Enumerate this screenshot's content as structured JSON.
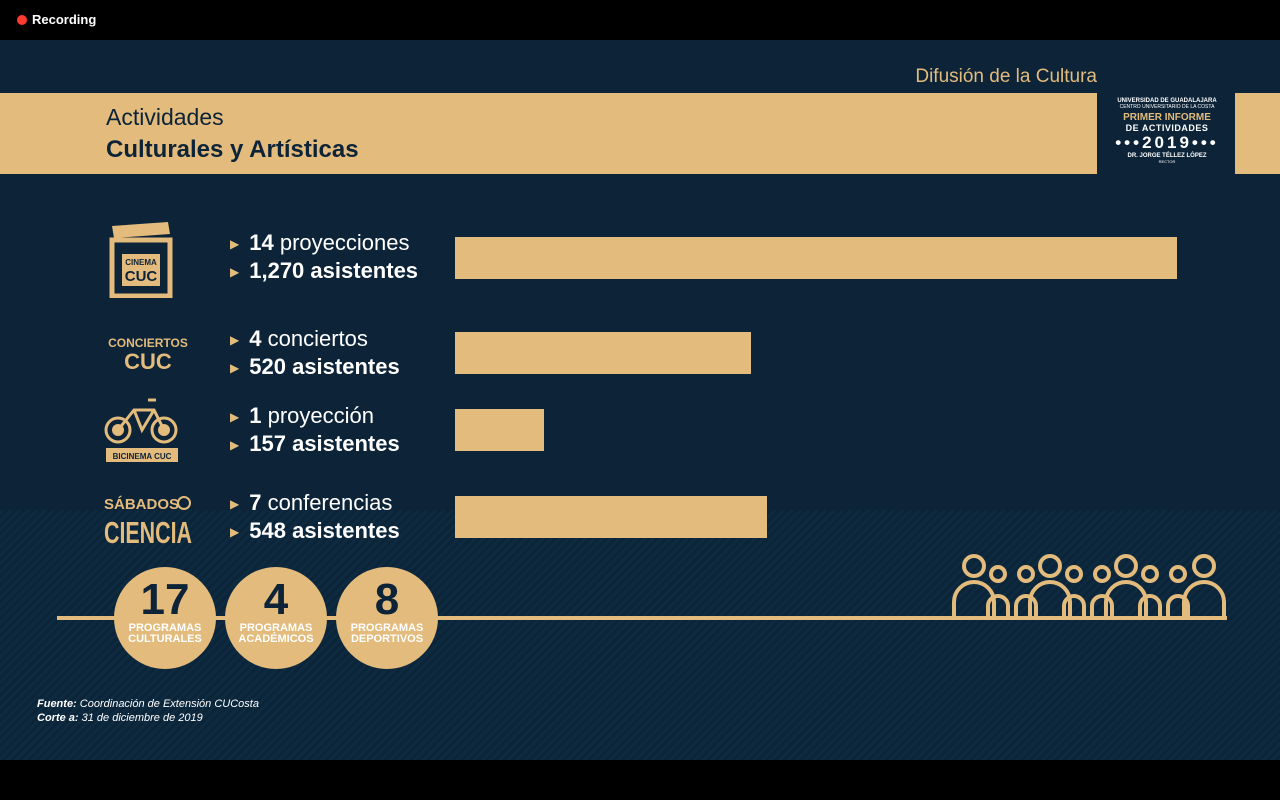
{
  "recorder": {
    "label": "Recording"
  },
  "header": {
    "section": "Difusión de la Cultura",
    "title_line1": "Actividades",
    "title_line2": "Culturales y Artísticas"
  },
  "logo": {
    "university": "UNIVERSIDAD DE GUADALAJARA",
    "center": "CENTRO UNIVERSITARIO DE LA COSTA",
    "report_line1": "PRIMER INFORME",
    "report_line2": "DE ACTIVIDADES",
    "year": "•••2019•••",
    "rector_name": "DR. JORGE TÉLLEZ LÓPEZ",
    "rector_title": "RECTOR"
  },
  "rows": [
    {
      "icon": "cinema-cuc-clapper-icon",
      "icon_text_top": "CINEMA",
      "icon_text_bottom": "CUC",
      "count": "14",
      "count_label": "proyecciones",
      "attendees": "1,270",
      "attendees_label": "asistentes"
    },
    {
      "icon": "conciertos-cuc-icon",
      "icon_text_top": "CONCIERTOS",
      "icon_text_bottom": "CUC",
      "count": "4",
      "count_label": "conciertos",
      "attendees": "520",
      "attendees_label": "asistentes"
    },
    {
      "icon": "bicinema-cuc-bicycle-icon",
      "icon_text_bottom": "BICINEMA CUC",
      "count": "1",
      "count_label": "proyección",
      "attendees": "157",
      "attendees_label": "asistentes"
    },
    {
      "icon": "sabados-ciencia-icon",
      "icon_text_top": "SÁBADOS",
      "icon_text_bottom": "CIENCIA",
      "count": "7",
      "count_label": "conferencias",
      "attendees": "548",
      "attendees_label": "asistentes"
    }
  ],
  "chart_data": {
    "type": "bar",
    "orientation": "horizontal",
    "categories": [
      "Cinema CUC",
      "Conciertos CUC",
      "Bicinema CUC",
      "Sábados de Ciencia"
    ],
    "values": [
      1270,
      520,
      157,
      548
    ],
    "xlim": [
      0,
      1270
    ]
  },
  "programs": [
    {
      "number": "17",
      "line1": "PROGRAMAS",
      "line2": "CULTURALES"
    },
    {
      "number": "4",
      "line1": "PROGRAMAS",
      "line2": "ACADÉMICOS"
    },
    {
      "number": "8",
      "line1": "PROGRAMAS",
      "line2": "DEPORTIVOS"
    }
  ],
  "source": {
    "fuente_label": "Fuente:",
    "fuente_value": "Coordinación de Extensión CUCosta",
    "corte_label": "Corte a:",
    "corte_value": "31 de diciembre de 2019"
  },
  "colors": {
    "navy": "#0c2338",
    "gold": "#e3bb7c",
    "record_red": "#ff3b30"
  }
}
